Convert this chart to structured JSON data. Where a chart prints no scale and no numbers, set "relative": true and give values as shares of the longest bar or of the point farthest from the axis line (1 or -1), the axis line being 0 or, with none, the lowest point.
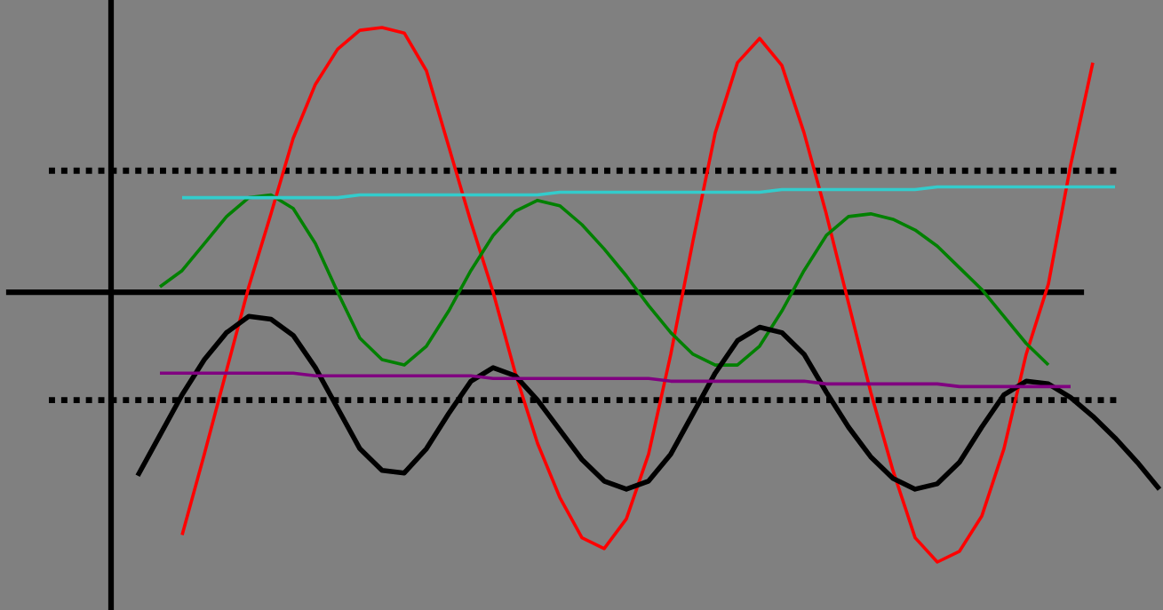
{
  "chart_data": {
    "type": "line",
    "relative": true,
    "legend": false,
    "line_style": "solid",
    "marker": "none",
    "categories": [
      null,
      null,
      null,
      null,
      null,
      null,
      null,
      null,
      null,
      null,
      null,
      null,
      null,
      null,
      null,
      null,
      null,
      null,
      null,
      null,
      null,
      null,
      null,
      null,
      null,
      null,
      null,
      null,
      null,
      null,
      null,
      null,
      null,
      null,
      null,
      null,
      null,
      null,
      null,
      null,
      null,
      null,
      null,
      null,
      null,
      null,
      null
    ],
    "series": [
      {
        "color": "#ff0000",
        "values": [
          null,
          null,
          -0.9,
          -0.6,
          -0.29,
          0.02,
          0.29,
          0.57,
          0.77,
          0.9,
          0.97,
          0.98,
          0.96,
          0.82,
          0.54,
          0.26,
          0,
          -0.3,
          -0.56,
          -0.76,
          -0.91,
          -0.95,
          -0.84,
          -0.6,
          -0.23,
          0.19,
          0.59,
          0.85,
          0.94,
          0.84,
          0.59,
          0.29,
          -0.04,
          -0.37,
          -0.66,
          -0.91,
          -1.0,
          -0.96,
          -0.83,
          -0.58,
          -0.23,
          0.03,
          0.47,
          0.85,
          null,
          null,
          null
        ]
      },
      {
        "color": "#008000",
        "values": [
          null,
          0.02,
          0.08,
          0.18,
          0.28,
          0.35,
          0.36,
          0.31,
          0.18,
          0.0,
          -0.17,
          -0.25,
          -0.27,
          -0.2,
          -0.07,
          0.08,
          0.21,
          0.3,
          0.34,
          0.32,
          0.25,
          0.16,
          0.06,
          -0.05,
          -0.15,
          -0.23,
          -0.27,
          -0.27,
          -0.2,
          -0.07,
          0.08,
          0.21,
          0.28,
          0.29,
          0.27,
          0.23,
          0.17,
          0.09,
          0.01,
          -0.09,
          -0.19,
          -0.27,
          null,
          null,
          null,
          null,
          null
        ]
      },
      {
        "color": "#000000",
        "values": [
          -0.68,
          -0.53,
          -0.38,
          -0.25,
          -0.15,
          -0.09,
          -0.1,
          -0.16,
          -0.28,
          -0.43,
          -0.58,
          -0.66,
          -0.67,
          -0.58,
          -0.45,
          -0.33,
          -0.28,
          -0.31,
          -0.4,
          -0.51,
          -0.62,
          -0.7,
          -0.73,
          -0.7,
          -0.6,
          -0.45,
          -0.3,
          -0.18,
          -0.13,
          -0.15,
          -0.23,
          -0.37,
          -0.5,
          -0.61,
          -0.69,
          -0.73,
          -0.71,
          -0.63,
          -0.5,
          -0.38,
          -0.33,
          -0.34,
          -0.39,
          -0.46,
          -0.54,
          -0.63,
          -0.73
        ]
      },
      {
        "color": "#33cccc",
        "values": [
          null,
          null,
          0.35,
          0.35,
          0.35,
          0.35,
          0.35,
          0.35,
          0.35,
          0.35,
          0.36,
          0.36,
          0.36,
          0.36,
          0.36,
          0.36,
          0.36,
          0.36,
          0.36,
          0.37,
          0.37,
          0.37,
          0.37,
          0.37,
          0.37,
          0.37,
          0.37,
          0.37,
          0.37,
          0.38,
          0.38,
          0.38,
          0.38,
          0.38,
          0.38,
          0.38,
          0.39,
          0.39,
          0.39,
          0.39,
          0.39,
          0.39,
          0.39,
          0.39,
          0.39,
          null,
          null
        ]
      },
      {
        "color": "#800080",
        "values": [
          null,
          -0.3,
          -0.3,
          -0.3,
          -0.3,
          -0.3,
          -0.3,
          -0.3,
          -0.31,
          -0.31,
          -0.31,
          -0.31,
          -0.31,
          -0.31,
          -0.31,
          -0.31,
          -0.32,
          -0.32,
          -0.32,
          -0.32,
          -0.32,
          -0.32,
          -0.32,
          -0.32,
          -0.33,
          -0.33,
          -0.33,
          -0.33,
          -0.33,
          -0.33,
          -0.33,
          -0.34,
          -0.34,
          -0.34,
          -0.34,
          -0.34,
          -0.34,
          -0.35,
          -0.35,
          -0.35,
          -0.35,
          -0.35,
          -0.35,
          null,
          null,
          null,
          null
        ]
      }
    ],
    "ref_lines": [
      {
        "axis": "y",
        "value": 0.45,
        "color": "#000000",
        "line_style": "dotted"
      },
      {
        "axis": "y",
        "value": -0.4,
        "color": "#000000",
        "line_style": "dotted"
      }
    ]
  }
}
